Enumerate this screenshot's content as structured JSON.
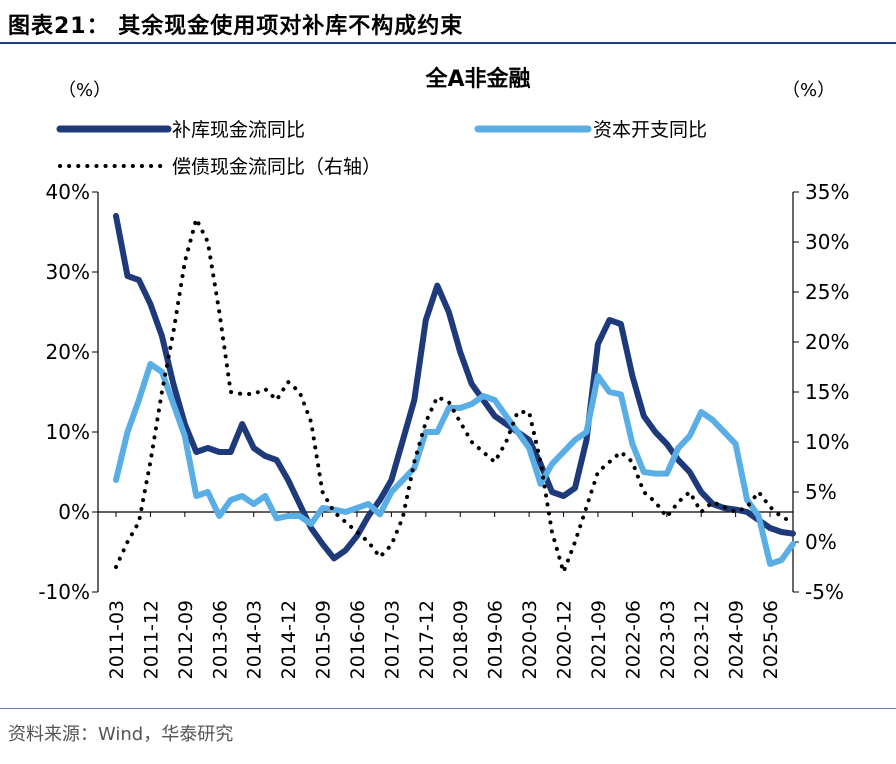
{
  "header": {
    "title": "图表21：  其余现金使用项对补库不构成约束"
  },
  "source": "资料来源：Wind，华泰研究",
  "chart_data": {
    "type": "line",
    "title": "全A非金融",
    "y_left_unit": "（%）",
    "y_right_unit": "（%）",
    "y_left": {
      "min": -10,
      "max": 40,
      "ticks": [
        -10,
        0,
        10,
        20,
        30,
        40
      ],
      "tick_labels": [
        "-10%",
        "0%",
        "10%",
        "20%",
        "30%",
        "40%"
      ]
    },
    "y_right": {
      "min": -5,
      "max": 35,
      "ticks": [
        -5,
        0,
        5,
        10,
        15,
        20,
        25,
        30,
        35
      ],
      "tick_labels": [
        "-5%",
        "0%",
        "5%",
        "10%",
        "15%",
        "20%",
        "25%",
        "30%",
        "35%"
      ]
    },
    "x_tick_labels": [
      "2011-03",
      "2011-12",
      "2012-09",
      "2013-06",
      "2014-03",
      "2014-12",
      "2015-09",
      "2016-06",
      "2017-03",
      "2017-12",
      "2018-09",
      "2019-06",
      "2020-03",
      "2020-12",
      "2021-09",
      "2022-06",
      "2023-03",
      "2023-12",
      "2024-09",
      "2025-06"
    ],
    "series": [
      {
        "name": "补库现金流同比",
        "axis": "left",
        "color": "#1f3a7a",
        "style": "solid",
        "values": [
          37,
          29.5,
          29,
          26,
          22,
          16,
          11,
          7.5,
          8,
          7.5,
          7.5,
          11,
          8,
          7,
          6.5,
          4,
          1,
          -2,
          -4,
          -5.8,
          -4.8,
          -3,
          -0.5,
          1.5,
          4,
          9,
          14,
          24,
          28.3,
          25,
          20,
          16,
          14,
          12,
          11,
          10,
          9,
          6,
          2.5,
          2,
          3,
          9,
          21,
          24,
          23.5,
          17,
          12,
          10,
          8.5,
          6.5,
          5,
          2.5,
          1,
          0.5,
          0.3,
          0,
          -1,
          -2,
          -2.5,
          -2.7
        ]
      },
      {
        "name": "资本开支同比",
        "axis": "left",
        "color": "#5aaee6",
        "style": "solid",
        "values": [
          4,
          10,
          14,
          18.5,
          17.5,
          13.5,
          9.5,
          2,
          2.5,
          -0.5,
          1.5,
          2,
          1,
          2,
          -0.8,
          -0.5,
          -0.5,
          -1.5,
          0.5,
          0.3,
          0,
          0.5,
          1,
          -0.3,
          2.5,
          4,
          5.5,
          10,
          10,
          13,
          13,
          13.5,
          14.5,
          14,
          12,
          10,
          8,
          3.5,
          6,
          7.5,
          9,
          10,
          17,
          15,
          14.7,
          8.5,
          5,
          4.8,
          4.8,
          8,
          9.5,
          12.5,
          11.5,
          10,
          8.5,
          1.5,
          -0.5,
          -6.5,
          -6,
          -4
        ]
      },
      {
        "name": "偿债现金流同比（右轴）",
        "axis": "right",
        "color": "#000000",
        "style": "dotted",
        "values": [
          -2.5,
          0,
          2,
          8,
          15,
          21,
          28,
          32.3,
          30,
          23,
          15,
          14.8,
          14.8,
          15.3,
          14.2,
          16,
          15,
          12,
          5,
          3,
          2,
          1,
          0,
          -1.5,
          -0.3,
          2.5,
          8,
          12,
          14.5,
          14,
          12,
          10,
          9,
          8,
          10,
          13,
          13,
          8,
          1,
          -3,
          0,
          3.5,
          7,
          8,
          9,
          8,
          5,
          4,
          2.5,
          4,
          5,
          3,
          4,
          3.5,
          3,
          3.5,
          5,
          3.5,
          2.5,
          2
        ]
      }
    ]
  }
}
